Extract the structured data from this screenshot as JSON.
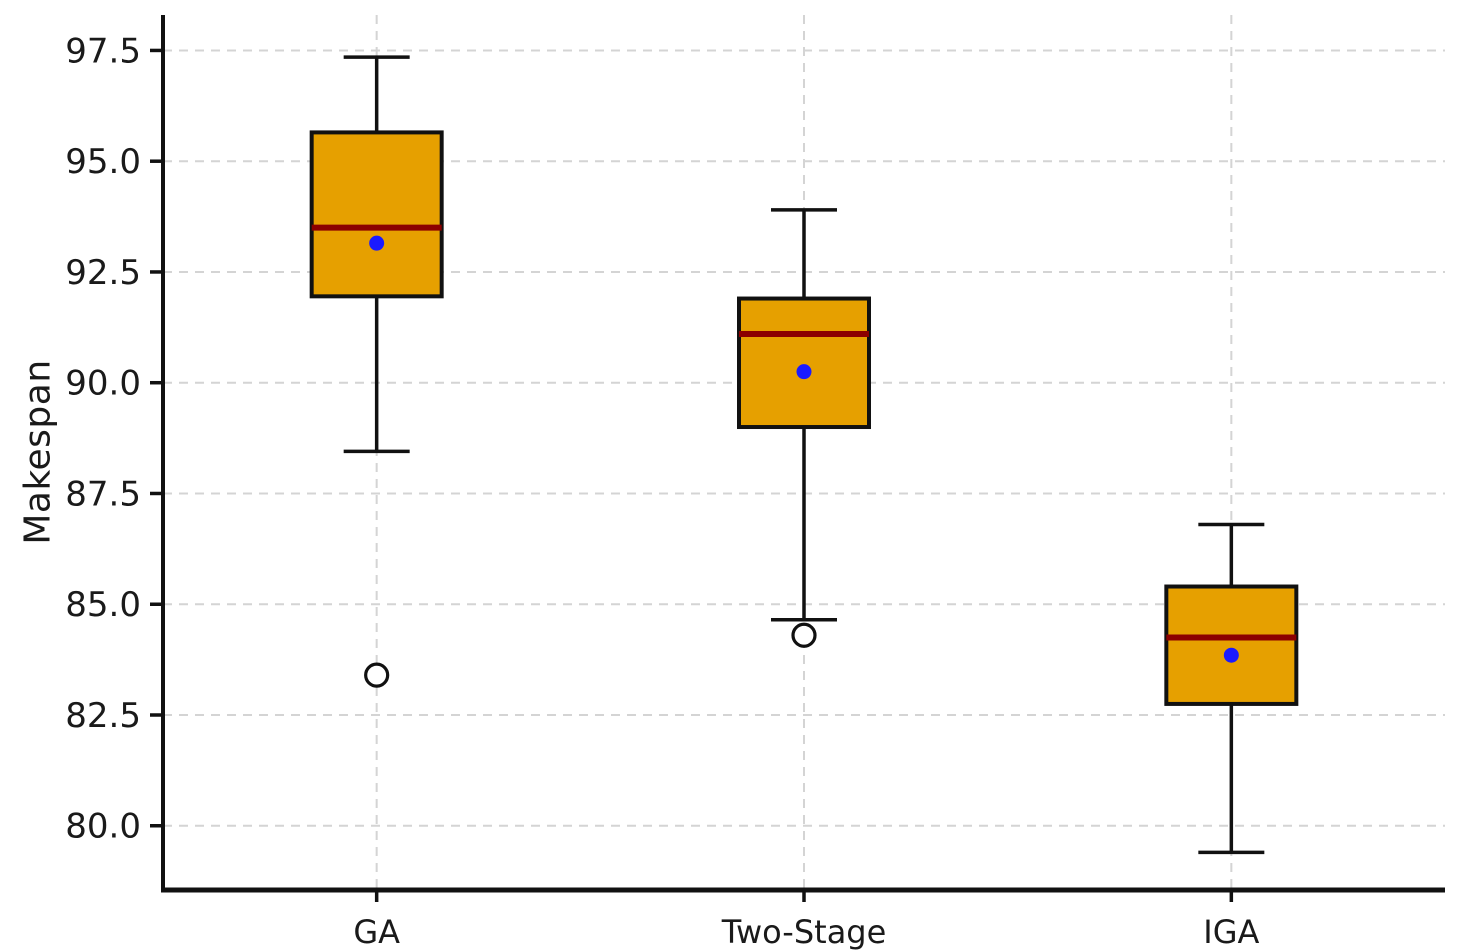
{
  "figure": {
    "background": "#ffffff"
  },
  "chart_data": {
    "type": "boxplot",
    "title": "",
    "xlabel": "",
    "ylabel": "Makespan",
    "categories": [
      "GA",
      "Two-Stage",
      "IGA"
    ],
    "y_ticks": [
      97.5,
      95.0,
      92.5,
      90.0,
      87.5,
      85.0,
      82.5,
      80.0
    ],
    "y_tick_labels": [
      "97.5",
      "95.0",
      "92.5",
      "90.0",
      "87.5",
      "85.0",
      "82.5",
      "80.0"
    ],
    "ylim": [
      78.55,
      98.3
    ],
    "grid": true,
    "legend": false,
    "series": [
      {
        "label": "GA",
        "whisker_low": 88.45,
        "q1": 91.95,
        "median": 93.5,
        "q3": 95.65,
        "whisker_high": 97.35,
        "mean": 93.15,
        "outliers": [
          83.4
        ]
      },
      {
        "label": "Two-Stage",
        "whisker_low": 84.65,
        "q1": 89.0,
        "median": 91.1,
        "q3": 91.9,
        "whisker_high": 93.9,
        "mean": 90.25,
        "outliers": [
          84.3
        ]
      },
      {
        "label": "IGA",
        "whisker_low": 79.4,
        "q1": 82.75,
        "median": 84.25,
        "q3": 85.4,
        "whisker_high": 86.8,
        "mean": 83.85,
        "outliers": []
      }
    ],
    "colors": {
      "box_fill": "#e6a000",
      "box_edge": "#111111",
      "median": "#8b0000",
      "mean_dot": "#1a1aff",
      "whisker": "#111111",
      "outlier_edge": "#111111",
      "outlier_fill": "#ffffff",
      "grid": "#d4d4d4",
      "axis": "#111111",
      "text": "#1a1a1a"
    }
  }
}
